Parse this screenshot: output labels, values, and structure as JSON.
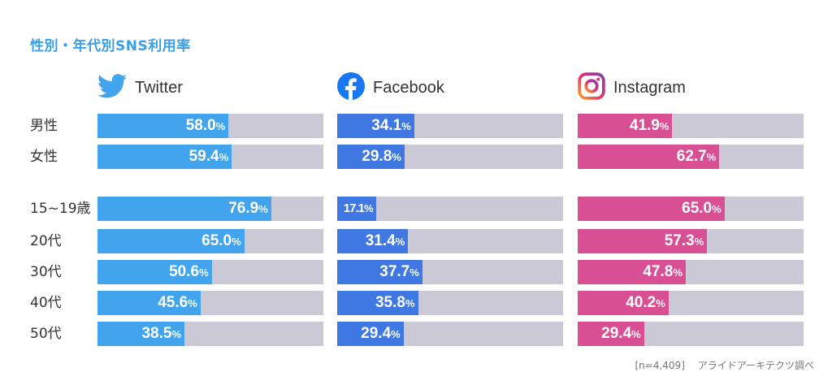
{
  "chart_data": {
    "type": "bar",
    "title": "性別・年代別SNS利用率",
    "categories": [
      "男性",
      "女性",
      "15~19歳",
      "20代",
      "30代",
      "40代",
      "50代"
    ],
    "unit": "%",
    "xlim": [
      0,
      100
    ],
    "series": [
      {
        "name": "Twitter",
        "icon": "twitter-bird-icon",
        "color": "#42a4ec",
        "values": [
          58.0,
          59.4,
          76.9,
          65.0,
          50.6,
          45.6,
          38.5
        ]
      },
      {
        "name": "Facebook",
        "icon": "facebook-icon",
        "color": "#3f78e3",
        "values": [
          34.1,
          29.8,
          17.1,
          31.4,
          37.7,
          35.8,
          29.4
        ]
      },
      {
        "name": "Instagram",
        "icon": "instagram-icon",
        "color": "#d94f93",
        "values": [
          41.9,
          62.7,
          65.0,
          57.3,
          47.8,
          40.2,
          29.4
        ]
      }
    ],
    "track_color": "#cbc9d6"
  },
  "footnote": {
    "sample": "[n=4,409]",
    "source": "アライドアーキテクツ調べ"
  }
}
